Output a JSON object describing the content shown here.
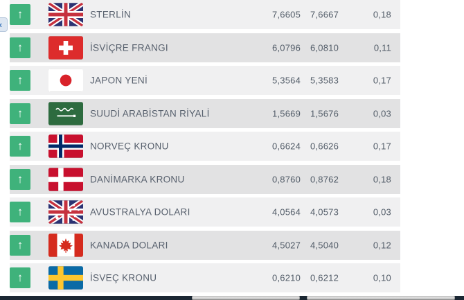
{
  "carousel": {
    "prev_icon": "‹"
  },
  "icons": {
    "up_arrow": "↑"
  },
  "table": {
    "rows": [
      {
        "flag": "gb",
        "direction": "up",
        "name": "STERLİN",
        "buy": "7,6605",
        "sell": "7,6667",
        "change": "0,18"
      },
      {
        "flag": "ch",
        "direction": "up",
        "name": "İSVİÇRE FRANGI",
        "buy": "6,0796",
        "sell": "6,0810",
        "change": "0,11"
      },
      {
        "flag": "jp",
        "direction": "up",
        "name": "JAPON YENİ",
        "buy": "5,3564",
        "sell": "5,3583",
        "change": "0,17"
      },
      {
        "flag": "sa",
        "direction": "up",
        "name": "SUUDİ ARABİSTAN RİYALİ",
        "buy": "1,5669",
        "sell": "1,5676",
        "change": "0,03"
      },
      {
        "flag": "no",
        "direction": "up",
        "name": "NORVEÇ KRONU",
        "buy": "0,6624",
        "sell": "0,6626",
        "change": "0,17"
      },
      {
        "flag": "dk",
        "direction": "up",
        "name": "DANİMARKA KRONU",
        "buy": "0,8760",
        "sell": "0,8762",
        "change": "0,18"
      },
      {
        "flag": "au",
        "direction": "up",
        "name": "AVUSTRALYA DOLARI",
        "buy": "4,0564",
        "sell": "4,0573",
        "change": "0,03"
      },
      {
        "flag": "ca",
        "direction": "up",
        "name": "KANADA DOLARI",
        "buy": "4,5027",
        "sell": "4,5040",
        "change": "0,12"
      },
      {
        "flag": "se",
        "direction": "up",
        "name": "İSVEÇ KRONU",
        "buy": "0,6210",
        "sell": "0,6212",
        "change": "0,10"
      }
    ]
  },
  "colors": {
    "up_green": "#3fb27b",
    "row_odd": "#f0f0f1",
    "row_even": "#e2e2e3",
    "text": "#525c68",
    "scrollbar_track": "#1b2733"
  }
}
